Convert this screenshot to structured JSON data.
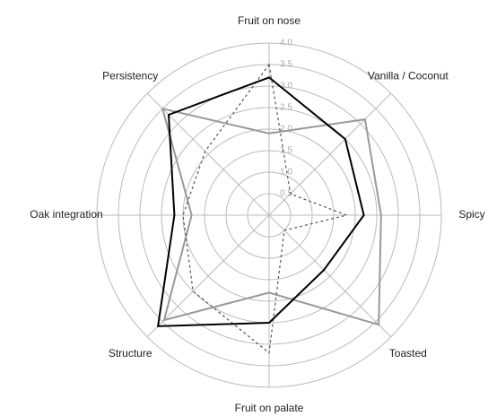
{
  "chart_data": {
    "type": "radar",
    "categories": [
      "Fruit on nose",
      "Vanilla / Coconut",
      "Spicy",
      "Toasted",
      "Fruit on palate",
      "Structure",
      "Oak integration",
      "Persistency"
    ],
    "rlim": [
      0,
      4
    ],
    "rticks": [
      0.5,
      {
        "value": 1,
        "label": "1.0"
      },
      1.5,
      {
        "value": 2,
        "label": "2.0"
      },
      2.5,
      {
        "value": 3,
        "label": "3.0"
      },
      3.5,
      {
        "value": 4,
        "label": "4.0"
      }
    ],
    "grid": true,
    "series": [
      {
        "color": "#999999",
        "dash": false,
        "values": [
          1.9,
          3.15,
          2.6,
          3.6,
          1.8,
          3.45,
          1.8,
          3.5
        ]
      },
      {
        "color": "#555555",
        "dash": true,
        "values": [
          3.5,
          0.7,
          1.8,
          0.5,
          3.2,
          2.5,
          2.0,
          2.1
        ]
      },
      {
        "color": "#000000",
        "dash": false,
        "values": [
          3.2,
          2.5,
          2.2,
          1.8,
          2.5,
          3.65,
          2.2,
          3.3
        ]
      }
    ]
  }
}
